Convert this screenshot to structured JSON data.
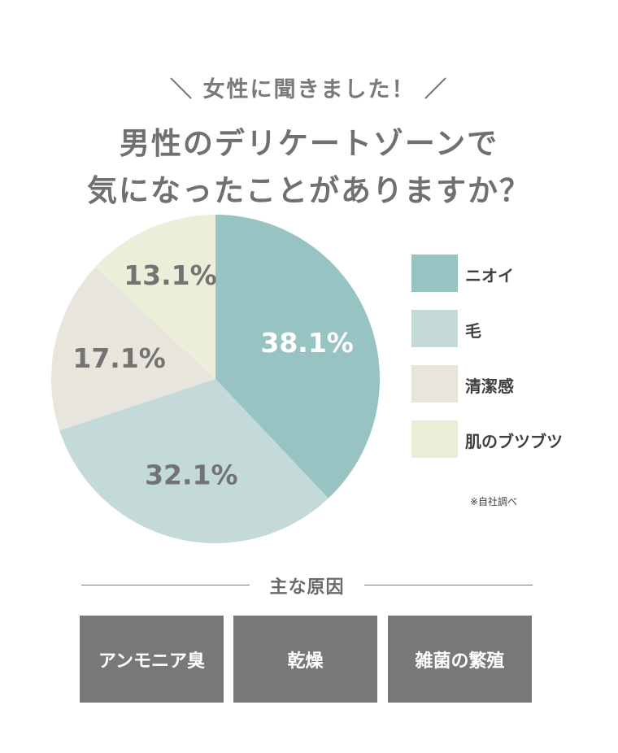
{
  "header": {
    "subtitle": "＼ 女性に聞きました！ ／",
    "title_line1": "男性のデリケートゾーンで",
    "title_line2": "気になったことがありますか？"
  },
  "chart_data": {
    "type": "pie",
    "categories": [
      "ニオイ",
      "毛",
      "清潔感",
      "肌のブツブツ"
    ],
    "values": [
      38.1,
      32.1,
      17.1,
      13.1
    ],
    "labels": [
      "38.1%",
      "32.1%",
      "17.1%",
      "13.1%"
    ],
    "colors": [
      "#97c4c3",
      "#c4dad9",
      "#e8e6dc",
      "#ebeed9"
    ],
    "label_colors": [
      "#ffffff",
      "#737373",
      "#737373",
      "#737373"
    ],
    "start_angle_deg": 0,
    "direction": "clockwise",
    "legend_position": "right"
  },
  "source_note": "※自社調べ",
  "causes_section": {
    "heading": "主な原因",
    "items": [
      "アンモニア臭",
      "乾燥",
      "雑菌の繁殖"
    ]
  }
}
